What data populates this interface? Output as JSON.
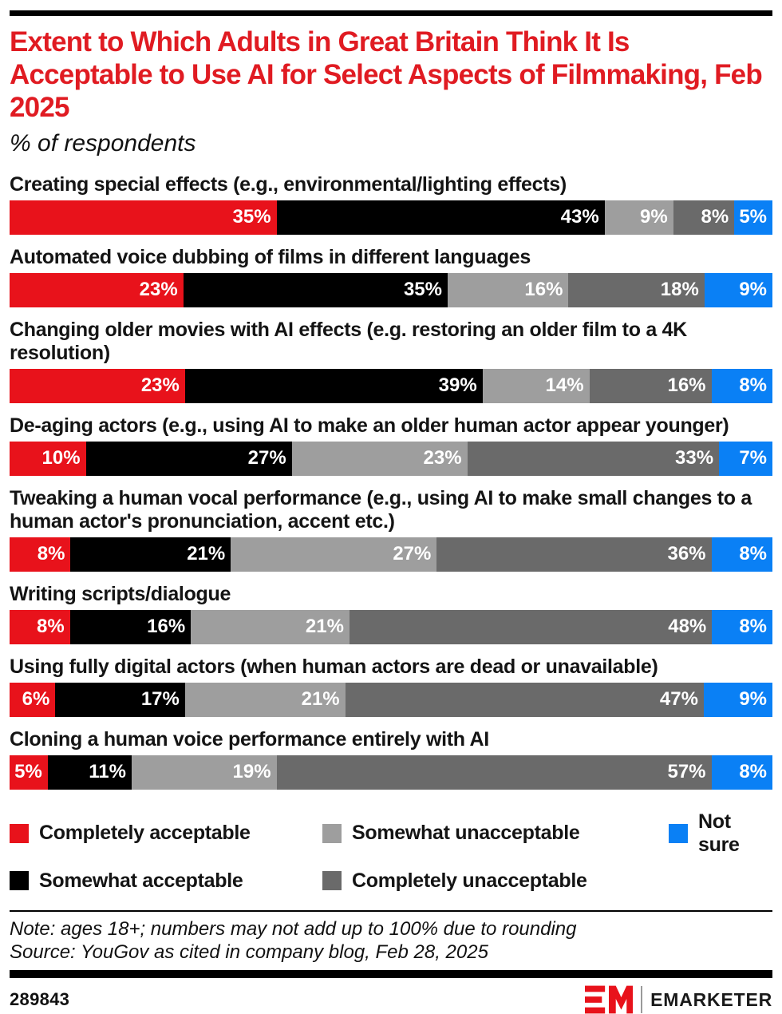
{
  "header": {
    "title": "Extent to Which Adults in Great Britain Think It Is Acceptable to Use AI for Select Aspects of Filmmaking, Feb 2025",
    "subtitle": "% of respondents"
  },
  "chart_data": {
    "type": "bar",
    "variant": "horizontal-stacked",
    "unit": "%",
    "xlim": [
      0,
      100
    ],
    "categories": [
      "Creating special effects (e.g., environmental/lighting effects)",
      "Automated voice dubbing of films in different languages",
      "Changing older movies with AI effects (e.g. restoring an older film to a 4K resolution)",
      "De-aging actors (e.g., using AI to make an older human actor appear younger)",
      "Tweaking a human vocal performance (e.g., using AI to make small changes to a human actor's pronunciation, accent etc.)",
      "Writing scripts/dialogue",
      "Using fully digital actors (when human actors are dead or unavailable)",
      "Cloning a human voice performance entirely with AI"
    ],
    "series": [
      {
        "name": "Completely acceptable",
        "color": "#e8121b",
        "values": [
          35,
          23,
          23,
          10,
          8,
          8,
          6,
          5
        ]
      },
      {
        "name": "Somewhat acceptable",
        "color": "#000000",
        "values": [
          43,
          35,
          39,
          27,
          21,
          16,
          17,
          11
        ]
      },
      {
        "name": "Somewhat unacceptable",
        "color": "#9e9e9e",
        "values": [
          9,
          16,
          14,
          23,
          27,
          21,
          21,
          19
        ]
      },
      {
        "name": "Completely unacceptable",
        "color": "#6a6a6a",
        "values": [
          8,
          18,
          16,
          33,
          36,
          48,
          47,
          57
        ]
      },
      {
        "name": "Not sure",
        "color": "#0a80f5",
        "values": [
          5,
          9,
          8,
          7,
          8,
          8,
          9,
          8
        ]
      }
    ],
    "legend_position": "bottom",
    "value_labels": "inside-right, white"
  },
  "colors": {
    "title_red": "#e01b22",
    "rule_black": "#000000"
  },
  "footer": {
    "note": "Note: ages 18+; numbers may not add up to 100% due to rounding",
    "source": "Source: YouGov as cited in company blog, Feb 28, 2025",
    "chart_id": "289843",
    "brand": "EMARKETER",
    "logo_monogram": "EM"
  }
}
